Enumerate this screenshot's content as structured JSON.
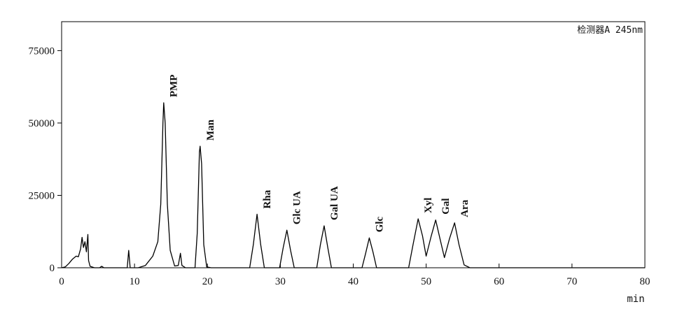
{
  "chart_data": {
    "type": "line",
    "detector_label": "检测器A 245nm",
    "xlabel": "min",
    "ylabel": "",
    "xlim": [
      0,
      80
    ],
    "ylim": [
      0,
      85000
    ],
    "x_ticks": [
      "0",
      "10",
      "20",
      "30",
      "40",
      "50",
      "60",
      "70",
      "80"
    ],
    "y_ticks": [
      "0",
      "25000",
      "50000",
      "75000"
    ],
    "grid": false,
    "colors": {
      "line": "#000000",
      "axes": "#000000"
    },
    "peaks": [
      {
        "label": "PMP",
        "x": 14.0,
        "y": 57000
      },
      {
        "label": "Man",
        "x": 19.0,
        "y": 42000
      },
      {
        "label": "Rha",
        "x": 26.8,
        "y": 18500
      },
      {
        "label": "Glc UA",
        "x": 30.9,
        "y": 13000
      },
      {
        "label": "Gal UA",
        "x": 36.0,
        "y": 14500
      },
      {
        "label": "Glc",
        "x": 42.2,
        "y": 10300
      },
      {
        "label": "Xyl",
        "x": 48.9,
        "y": 16900
      },
      {
        "label": "Gal",
        "x": 51.3,
        "y": 16500
      },
      {
        "label": "Ara",
        "x": 53.9,
        "y": 15500
      }
    ],
    "series": [
      {
        "values": [
          [
            0.0,
            0
          ],
          [
            0.5,
            300
          ],
          [
            1.0,
            1500
          ],
          [
            1.5,
            3000
          ],
          [
            2.0,
            4000
          ],
          [
            2.3,
            3800
          ],
          [
            2.6,
            6500
          ],
          [
            2.8,
            10500
          ],
          [
            3.0,
            7000
          ],
          [
            3.2,
            9000
          ],
          [
            3.4,
            5500
          ],
          [
            3.6,
            11500
          ],
          [
            3.7,
            2500
          ],
          [
            3.9,
            500
          ],
          [
            4.5,
            0
          ],
          [
            5.2,
            0
          ],
          [
            5.5,
            500
          ],
          [
            5.8,
            0
          ],
          [
            9.0,
            0
          ],
          [
            9.2,
            6000
          ],
          [
            9.4,
            0
          ],
          [
            10.5,
            0
          ],
          [
            11.5,
            800
          ],
          [
            12.5,
            4000
          ],
          [
            13.2,
            9000
          ],
          [
            13.6,
            22000
          ],
          [
            13.9,
            50000
          ],
          [
            14.0,
            57000
          ],
          [
            14.2,
            50000
          ],
          [
            14.5,
            22000
          ],
          [
            14.9,
            6000
          ],
          [
            15.5,
            600
          ],
          [
            16.0,
            800
          ],
          [
            16.3,
            5000
          ],
          [
            16.5,
            800
          ],
          [
            17.0,
            0
          ],
          [
            18.3,
            0
          ],
          [
            18.6,
            12000
          ],
          [
            18.9,
            40000
          ],
          [
            19.0,
            42000
          ],
          [
            19.2,
            36000
          ],
          [
            19.5,
            8000
          ],
          [
            19.9,
            300
          ],
          [
            20.5,
            0
          ],
          [
            25.8,
            0
          ],
          [
            26.3,
            8000
          ],
          [
            26.8,
            18500
          ],
          [
            27.3,
            8000
          ],
          [
            27.8,
            0
          ],
          [
            29.9,
            0
          ],
          [
            30.4,
            7000
          ],
          [
            30.9,
            13000
          ],
          [
            31.4,
            6000
          ],
          [
            31.9,
            0
          ],
          [
            35.0,
            0
          ],
          [
            35.5,
            8000
          ],
          [
            36.0,
            14500
          ],
          [
            36.5,
            7000
          ],
          [
            37.0,
            0
          ],
          [
            41.2,
            0
          ],
          [
            41.7,
            5000
          ],
          [
            42.2,
            10300
          ],
          [
            42.7,
            5500
          ],
          [
            43.2,
            0
          ],
          [
            47.6,
            0
          ],
          [
            48.2,
            8000
          ],
          [
            48.9,
            16900
          ],
          [
            49.5,
            11000
          ],
          [
            50.0,
            4000
          ],
          [
            50.7,
            11000
          ],
          [
            51.3,
            16500
          ],
          [
            51.9,
            10000
          ],
          [
            52.5,
            3500
          ],
          [
            53.2,
            10000
          ],
          [
            53.9,
            15500
          ],
          [
            54.5,
            8000
          ],
          [
            55.2,
            1000
          ],
          [
            56.0,
            0
          ],
          [
            80.0,
            0
          ]
        ]
      }
    ]
  }
}
